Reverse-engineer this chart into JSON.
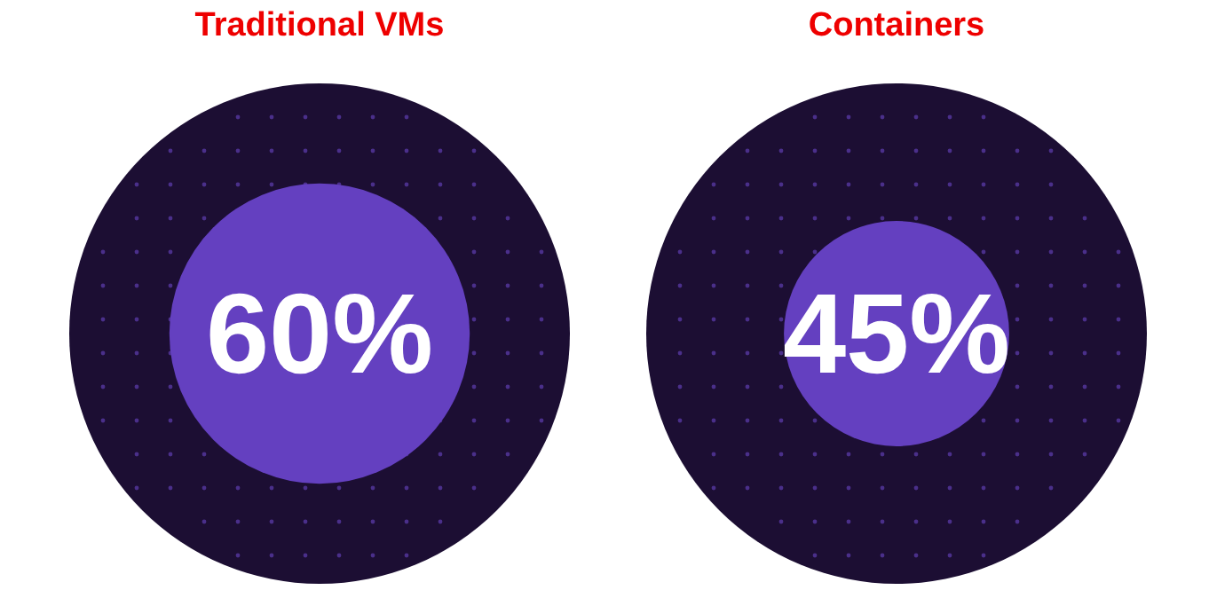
{
  "chart_data": [
    {
      "type": "other",
      "title": "Traditional VMs",
      "values": [
        60
      ],
      "value_labels": [
        "60%"
      ],
      "colors": [
        "#6440c0"
      ]
    },
    {
      "type": "other",
      "title": "Containers",
      "values": [
        45
      ],
      "value_labels": [
        "45%"
      ],
      "colors": [
        "#6440c0"
      ]
    }
  ]
}
